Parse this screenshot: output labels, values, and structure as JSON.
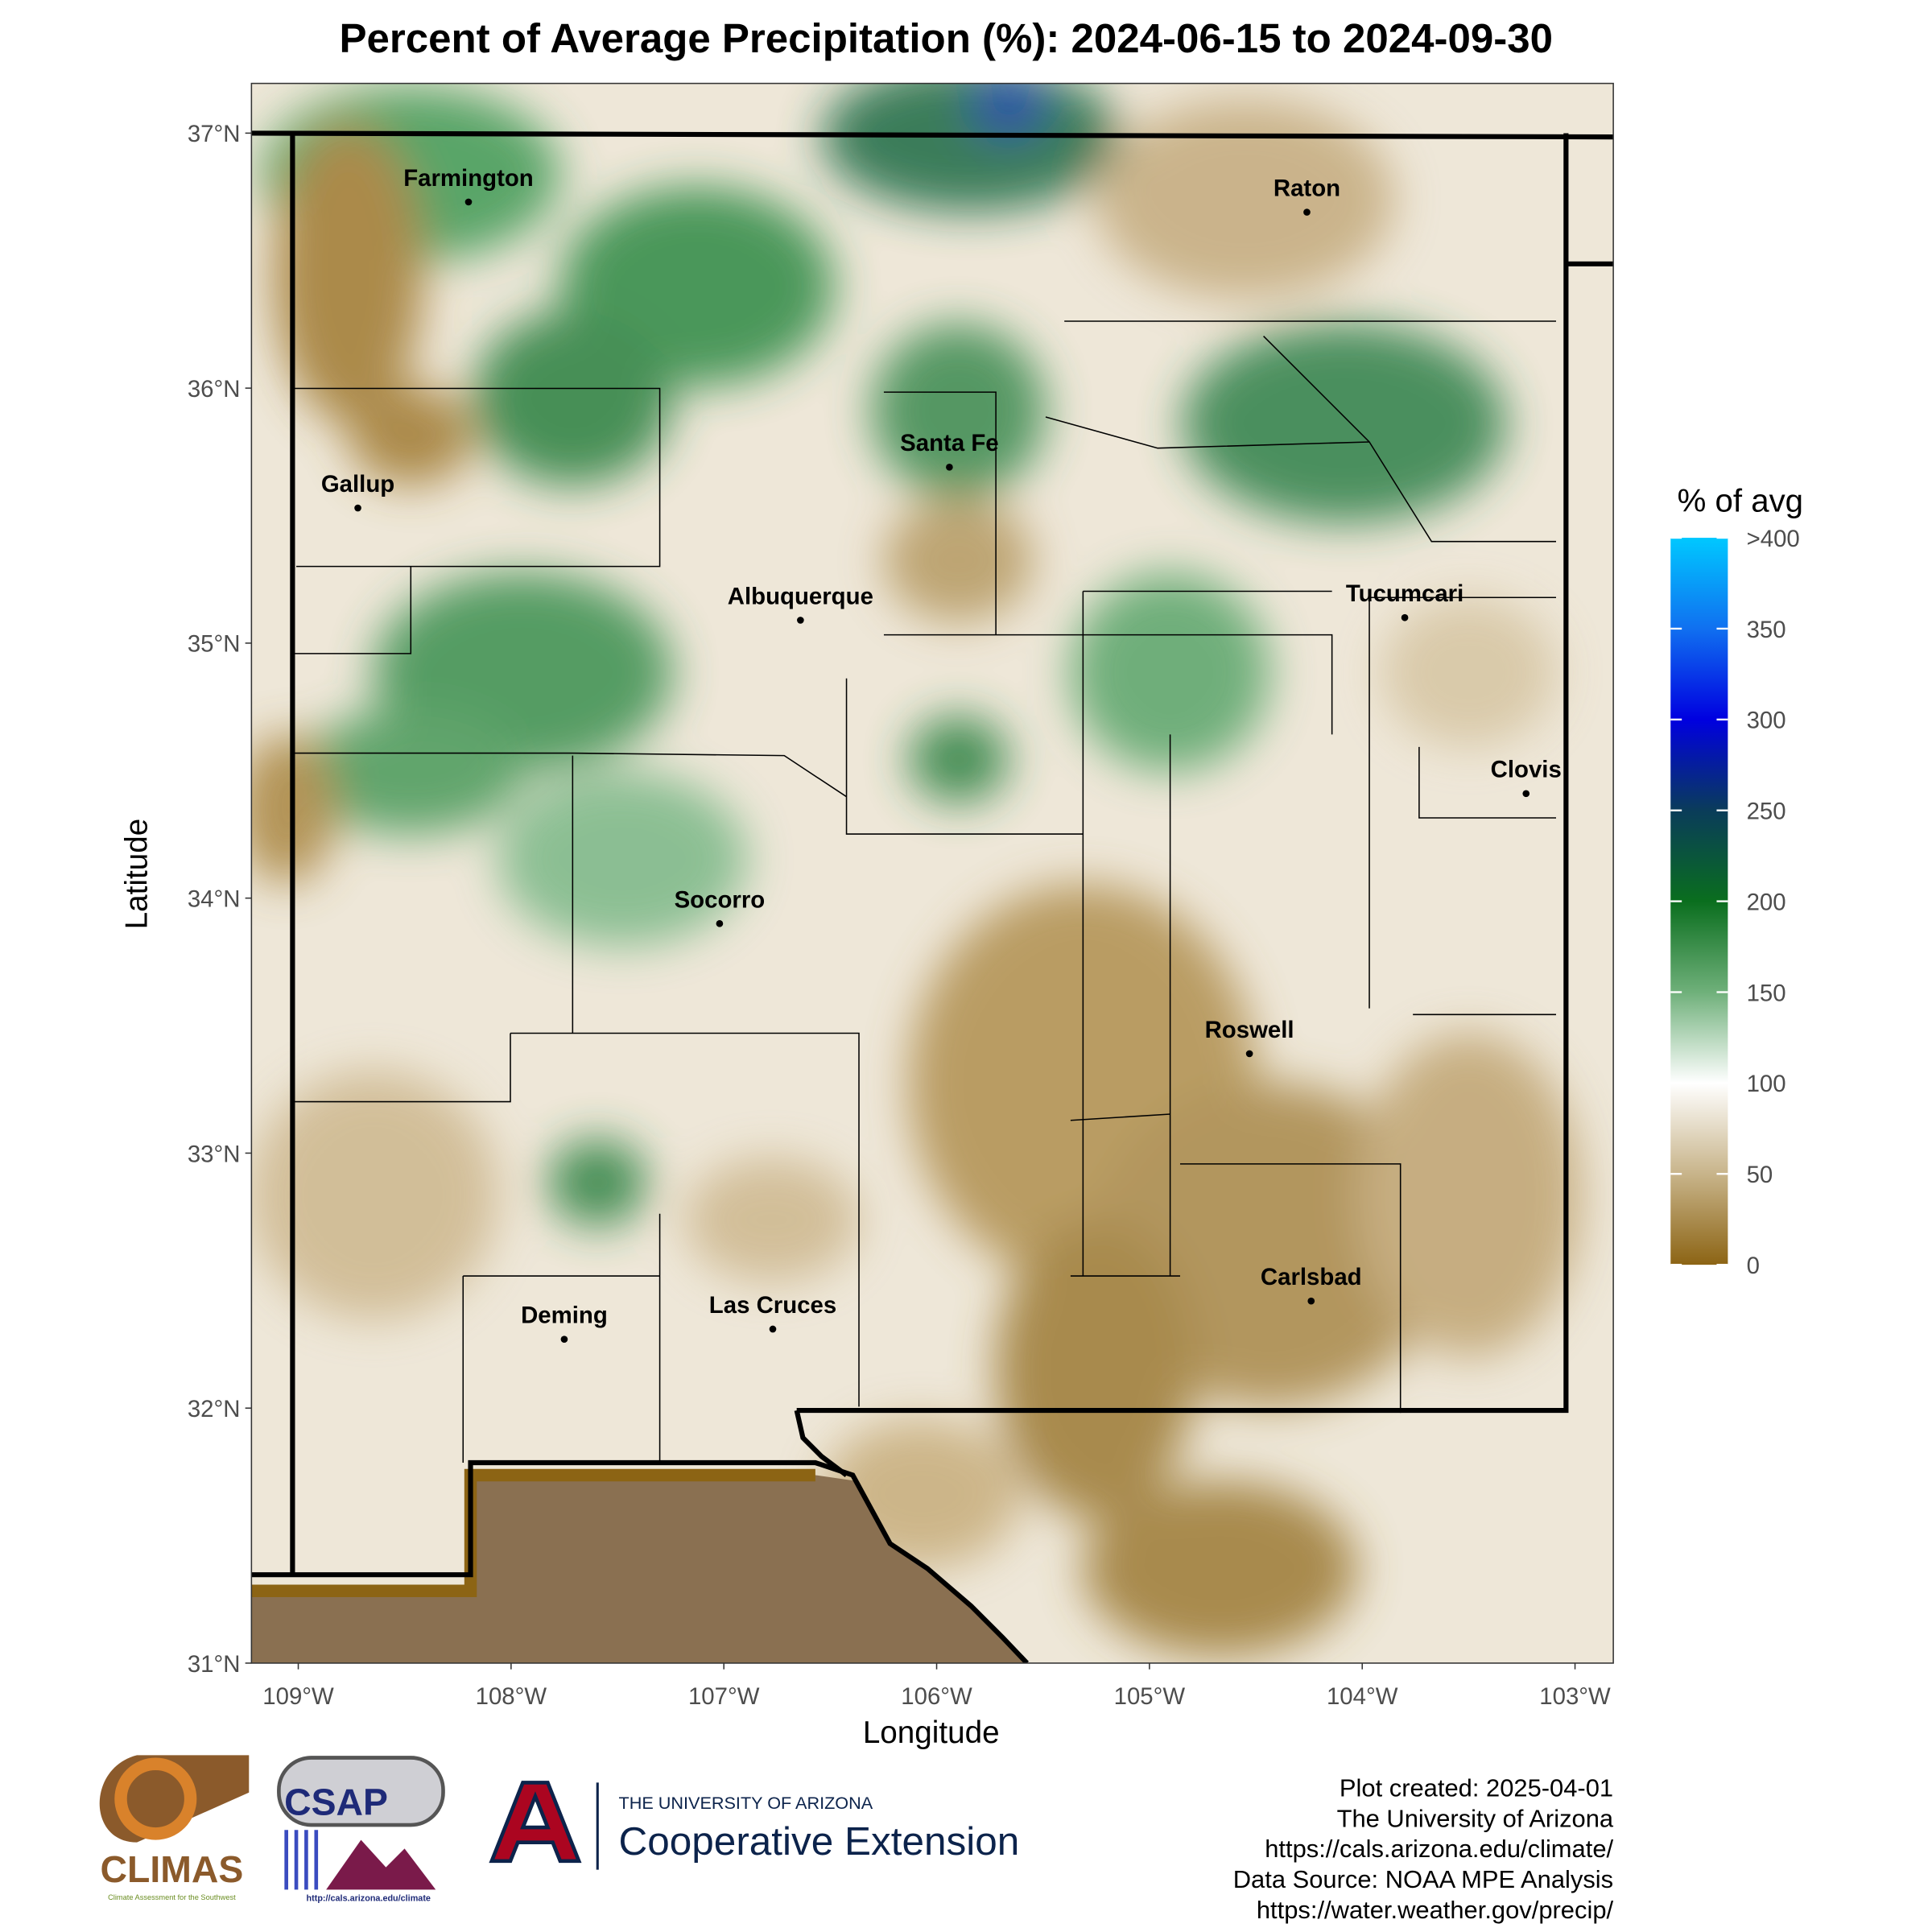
{
  "map": {
    "title": "Percent of Average Precipitation (%): 2024-06-15 to 2024-09-30",
    "x_label": "Longitude",
    "y_label": "Latitude",
    "xlim": [
      -109.22,
      -102.82
    ],
    "ylim": [
      31,
      37.195
    ],
    "xticks": [
      {
        "value": -109,
        "label": "109°W"
      },
      {
        "value": -108,
        "label": "108°W"
      },
      {
        "value": -107,
        "label": "107°W"
      },
      {
        "value": -106,
        "label": "106°W"
      },
      {
        "value": -105,
        "label": "105°W"
      },
      {
        "value": -104,
        "label": "104°W"
      },
      {
        "value": -103,
        "label": "103°W"
      }
    ],
    "yticks": [
      {
        "value": 31,
        "label": "31°N"
      },
      {
        "value": 32,
        "label": "32°N"
      },
      {
        "value": 33,
        "label": "33°N"
      },
      {
        "value": 34,
        "label": "34°N"
      },
      {
        "value": 35,
        "label": "35°N"
      },
      {
        "value": 36,
        "label": "36°N"
      },
      {
        "value": 37,
        "label": "37°N"
      }
    ],
    "cities": [
      {
        "name": "Farmington",
        "lon": -108.2,
        "lat": 36.73
      },
      {
        "name": "Raton",
        "lon": -104.26,
        "lat": 36.69
      },
      {
        "name": "Gallup",
        "lon": -108.72,
        "lat": 35.53
      },
      {
        "name": "Santa Fe",
        "lon": -105.94,
        "lat": 35.69
      },
      {
        "name": "Albuquerque",
        "lon": -106.64,
        "lat": 35.09
      },
      {
        "name": "Tucumcari",
        "lon": -103.8,
        "lat": 35.1
      },
      {
        "name": "Clovis",
        "lon": -103.23,
        "lat": 34.41
      },
      {
        "name": "Socorro",
        "lon": -107.02,
        "lat": 33.9
      },
      {
        "name": "Roswell",
        "lon": -104.53,
        "lat": 33.39
      },
      {
        "name": "Carlsbad",
        "lon": -104.24,
        "lat": 32.42
      },
      {
        "name": "Deming",
        "lon": -107.75,
        "lat": 32.27
      },
      {
        "name": "Las Cruces",
        "lon": -106.77,
        "lat": 32.31
      }
    ],
    "legend": {
      "title": "% of avg",
      "lim": [
        0,
        400
      ],
      "ticks": [
        0,
        50,
        100,
        150,
        200,
        250,
        300,
        350,
        {
          "value": 400,
          "label": ">400"
        }
      ],
      "colorscale": [
        "#8c6414",
        "#c8b48a",
        "#ffffff",
        "#6fb07a",
        "#0a6e1e",
        "#0a3c5a",
        "#0000e0",
        "#1070f0",
        "#00c8ff"
      ]
    },
    "footer": [
      "Plot created: 2025-04-01",
      "The University of Arizona",
      "https://cals.arizona.edu/climate/",
      "Data Source: NOAA MPE Analysis",
      "https://water.weather.gov/precip/"
    ],
    "logos": {
      "climas": "CLIMAS",
      "climas_sub": "Climate Assessment for the Southwest",
      "csap": "CSAP",
      "csap_url": "http://cals.arizona.edu/climate",
      "ua": "THE UNIVERSITY OF ARIZONA",
      "extension": "Cooperative Extension"
    }
  }
}
